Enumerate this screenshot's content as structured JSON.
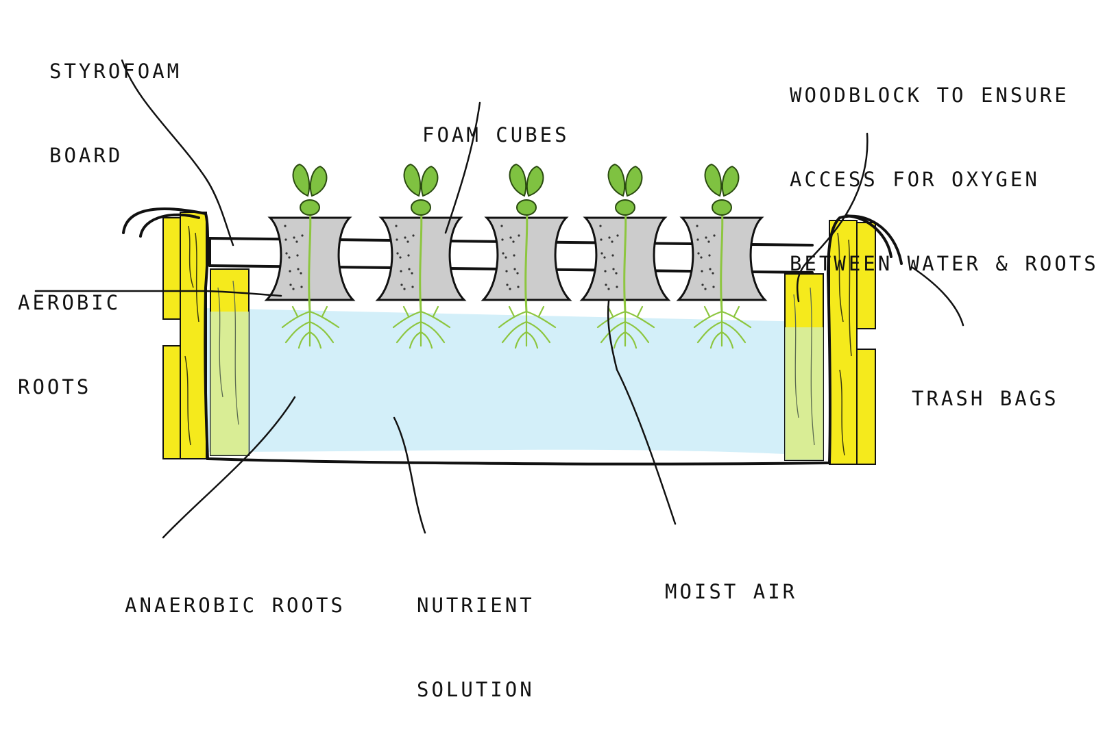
{
  "labels": {
    "styrofoam_board": [
      "STYROFOAM",
      "BOARD"
    ],
    "foam_cubes": [
      "FOAM CUBES"
    ],
    "woodblock": [
      "WOODBLOCK TO ENSURE",
      "ACCESS FOR OXYGEN",
      "BETWEEN WATER & ROOTS"
    ],
    "aerobic_roots": [
      "AEROBIC",
      "ROOTS"
    ],
    "trash_bags": [
      "TRASH BAGS"
    ],
    "anaerobic_roots": [
      "ANAEROBIC ROOTS"
    ],
    "nutrient_solution": [
      "NUTRIENT",
      "SOLUTION"
    ],
    "moist_air": [
      "MOIST AIR"
    ]
  },
  "colors": {
    "wood": "#f5ea1c",
    "wood_grain": "#3a3a10",
    "water": "#d3eff9",
    "water_shadow": "#cfe9f3",
    "cube": "#cccccc",
    "leaf": "#7fc241",
    "leaf_dark": "#2a4a10",
    "root": "#8dc63f",
    "outline": "#111111"
  },
  "plants": {
    "count": 5
  }
}
